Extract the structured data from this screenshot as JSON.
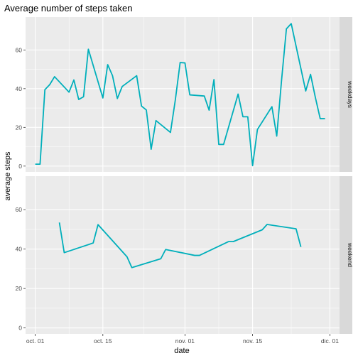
{
  "chart_data": {
    "type": "line",
    "title": "Average number of steps taken",
    "xlabel": "date",
    "ylabel": "average steps",
    "x_tick_labels": [
      {
        "date": "2012-10-01",
        "label": "oct. 01"
      },
      {
        "date": "2012-10-15",
        "label": "oct. 15"
      },
      {
        "date": "2012-11-01",
        "label": "nov. 01"
      },
      {
        "date": "2012-11-15",
        "label": "nov. 15"
      },
      {
        "date": "2012-12-01",
        "label": "dic. 01"
      }
    ],
    "xlim": [
      "2012-09-29",
      "2012-12-03"
    ],
    "ylim": [
      -3,
      77
    ],
    "y_ticks": [
      0,
      20,
      40,
      60
    ],
    "grid": true,
    "series_color": "#00AFBB",
    "panel_background": "#EBEBEB",
    "strip_background": "#D9D9D9",
    "facets": [
      {
        "name": "weekdays",
        "points": [
          [
            "2012-10-01",
            1.0
          ],
          [
            "2012-10-02",
            1.0
          ],
          [
            "2012-10-03",
            39.5
          ],
          [
            "2012-10-04",
            42.1
          ],
          [
            "2012-10-05",
            46.2
          ],
          [
            "2012-10-08",
            38.2
          ],
          [
            "2012-10-09",
            44.5
          ],
          [
            "2012-10-10",
            34.4
          ],
          [
            "2012-10-11",
            35.8
          ],
          [
            "2012-10-12",
            60.4
          ],
          [
            "2012-10-15",
            35.2
          ],
          [
            "2012-10-16",
            52.4
          ],
          [
            "2012-10-17",
            46.7
          ],
          [
            "2012-10-18",
            34.9
          ],
          [
            "2012-10-19",
            41.1
          ],
          [
            "2012-10-22",
            46.7
          ],
          [
            "2012-10-23",
            31.0
          ],
          [
            "2012-10-24",
            29.0
          ],
          [
            "2012-10-25",
            8.7
          ],
          [
            "2012-10-26",
            23.5
          ],
          [
            "2012-10-29",
            17.4
          ],
          [
            "2012-10-30",
            34.1
          ],
          [
            "2012-10-31",
            53.5
          ],
          [
            "2012-11-01",
            53.3
          ],
          [
            "2012-11-02",
            36.8
          ],
          [
            "2012-11-05",
            36.2
          ],
          [
            "2012-11-06",
            28.9
          ],
          [
            "2012-11-07",
            44.7
          ],
          [
            "2012-11-08",
            11.2
          ],
          [
            "2012-11-09",
            11.2
          ],
          [
            "2012-11-12",
            37.2
          ],
          [
            "2012-11-13",
            25.5
          ],
          [
            "2012-11-14",
            25.5
          ],
          [
            "2012-11-15",
            0.2
          ],
          [
            "2012-11-16",
            18.9
          ],
          [
            "2012-11-19",
            30.7
          ],
          [
            "2012-11-20",
            15.5
          ],
          [
            "2012-11-21",
            44.4
          ],
          [
            "2012-11-22",
            70.9
          ],
          [
            "2012-11-23",
            73.6
          ],
          [
            "2012-11-26",
            38.8
          ],
          [
            "2012-11-27",
            47.4
          ],
          [
            "2012-11-28",
            35.4
          ],
          [
            "2012-11-29",
            24.5
          ],
          [
            "2012-11-30",
            24.5
          ]
        ]
      },
      {
        "name": "weekend",
        "points": [
          [
            "2012-10-06",
            53.5
          ],
          [
            "2012-10-07",
            38.2
          ],
          [
            "2012-10-13",
            43.1
          ],
          [
            "2012-10-14",
            52.4
          ],
          [
            "2012-10-20",
            36.1
          ],
          [
            "2012-10-21",
            30.6
          ],
          [
            "2012-10-27",
            35.1
          ],
          [
            "2012-10-28",
            39.8
          ],
          [
            "2012-11-03",
            36.8
          ],
          [
            "2012-11-04",
            36.8
          ],
          [
            "2012-11-10",
            43.8
          ],
          [
            "2012-11-11",
            43.8
          ],
          [
            "2012-11-17",
            49.8
          ],
          [
            "2012-11-18",
            52.5
          ],
          [
            "2012-11-24",
            50.3
          ],
          [
            "2012-11-25",
            41.1
          ]
        ]
      }
    ]
  }
}
